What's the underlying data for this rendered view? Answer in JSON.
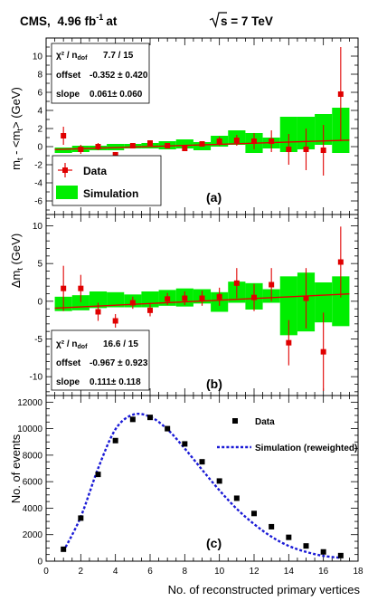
{
  "header": {
    "experiment": "CMS,",
    "lumi": "4.96 fb",
    "lumi_exp": "-1",
    "at": "at",
    "energy": "s = 7 TeV"
  },
  "chart_data": [
    {
      "type": "scatter",
      "panel_label": "(a)",
      "ylabel": "m",
      "ylabel_sub": "t",
      "ylabel_mid": " - <m",
      "ylabel_sub2": "t",
      "ylabel_end": "> (GeV)",
      "xlim": [
        0,
        18
      ],
      "ylim": [
        -7.5,
        12
      ],
      "yticks": [
        -6,
        -4,
        -2,
        0,
        2,
        4,
        6,
        8,
        10
      ],
      "grid": false,
      "legend_position": "bottom-left",
      "legend": [
        {
          "label": "Data",
          "kind": "marker",
          "color": "#e00000"
        },
        {
          "label": "Simulation",
          "kind": "band",
          "color": "#00ee00"
        }
      ],
      "fit_stats": {
        "chi2_label": "χ² / n",
        "chi2_sub": "dof",
        "chi2_value": "7.7 / 15",
        "offset_label": "offset",
        "offset_value": "-0.352 ± 0.420",
        "slope_label": "slope",
        "slope_value": "0.061± 0.060"
      },
      "fit_line": {
        "intercept": -0.352,
        "slope": 0.061,
        "color": "#e00000"
      },
      "data": [
        {
          "x": 1,
          "y": 1.2,
          "err": 1.0
        },
        {
          "x": 2,
          "y": -0.3,
          "err": 0.5
        },
        {
          "x": 3,
          "y": 0.0,
          "err": 0.4
        },
        {
          "x": 4,
          "y": -0.9,
          "err": 0.3
        },
        {
          "x": 5,
          "y": 0.1,
          "err": 0.3
        },
        {
          "x": 6,
          "y": 0.4,
          "err": 0.3
        },
        {
          "x": 7,
          "y": 0.1,
          "err": 0.3
        },
        {
          "x": 8,
          "y": -0.2,
          "err": 0.3
        },
        {
          "x": 9,
          "y": 0.3,
          "err": 0.3
        },
        {
          "x": 10,
          "y": 0.6,
          "err": 0.5
        },
        {
          "x": 11,
          "y": 0.7,
          "err": 0.6
        },
        {
          "x": 12,
          "y": 0.6,
          "err": 0.9
        },
        {
          "x": 13,
          "y": 0.6,
          "err": 1.2
        },
        {
          "x": 14,
          "y": -0.3,
          "err": 1.7
        },
        {
          "x": 15,
          "y": -0.3,
          "err": 2.3
        },
        {
          "x": 16,
          "y": -0.4,
          "err": 2.8
        },
        {
          "x": 17,
          "y": 5.8,
          "err": 5.2
        }
      ],
      "simulation_band": [
        {
          "x": 1,
          "lo": -0.7,
          "hi": -0.1
        },
        {
          "x": 2,
          "lo": -0.6,
          "hi": 0.1
        },
        {
          "x": 3,
          "lo": -0.4,
          "hi": 0.1
        },
        {
          "x": 4,
          "lo": -0.4,
          "hi": 0.3
        },
        {
          "x": 5,
          "lo": -0.2,
          "hi": 0.3
        },
        {
          "x": 6,
          "lo": -0.2,
          "hi": 0.4
        },
        {
          "x": 7,
          "lo": -0.3,
          "hi": 0.6
        },
        {
          "x": 8,
          "lo": -0.2,
          "hi": 0.8
        },
        {
          "x": 9,
          "lo": -0.4,
          "hi": 0.5
        },
        {
          "x": 10,
          "lo": 0.0,
          "hi": 1.2
        },
        {
          "x": 11,
          "lo": 0.2,
          "hi": 1.8
        },
        {
          "x": 12,
          "lo": -0.7,
          "hi": 1.5
        },
        {
          "x": 13,
          "lo": -0.2,
          "hi": 1.0
        },
        {
          "x": 14,
          "lo": -0.6,
          "hi": 3.3
        },
        {
          "x": 15,
          "lo": -0.3,
          "hi": 3.3
        },
        {
          "x": 16,
          "lo": 0.2,
          "hi": 3.6
        },
        {
          "x": 17,
          "lo": -0.7,
          "hi": 4.3
        }
      ]
    },
    {
      "type": "scatter",
      "panel_label": "(b)",
      "ylabel": "Δm",
      "ylabel_sub": "t",
      "ylabel_end": " (GeV)",
      "xlim": [
        0,
        18
      ],
      "ylim": [
        -12.5,
        11.5
      ],
      "yticks": [
        -10,
        -5,
        0,
        5,
        10
      ],
      "grid": false,
      "fit_stats": {
        "chi2_label": "χ² / n",
        "chi2_sub": "dof",
        "chi2_value": "16.6 / 15",
        "offset_label": "offset",
        "offset_value": "-0.967 ± 0.923",
        "slope_label": "slope",
        "slope_value": "0.111± 0.118"
      },
      "fit_line": {
        "intercept": -0.967,
        "slope": 0.111,
        "color": "#e00000"
      },
      "data": [
        {
          "x": 1,
          "y": 1.7,
          "err": 3.0
        },
        {
          "x": 2,
          "y": 1.7,
          "err": 1.8
        },
        {
          "x": 3,
          "y": -1.4,
          "err": 1.2
        },
        {
          "x": 4,
          "y": -2.6,
          "err": 0.9
        },
        {
          "x": 5,
          "y": -0.2,
          "err": 0.8
        },
        {
          "x": 6,
          "y": -1.2,
          "err": 0.8
        },
        {
          "x": 7,
          "y": 0.3,
          "err": 0.8
        },
        {
          "x": 8,
          "y": 0.4,
          "err": 0.9
        },
        {
          "x": 9,
          "y": 0.4,
          "err": 1.0
        },
        {
          "x": 10,
          "y": 0.6,
          "err": 1.2
        },
        {
          "x": 11,
          "y": 2.4,
          "err": 2.0
        },
        {
          "x": 12,
          "y": 0.5,
          "err": 1.8
        },
        {
          "x": 13,
          "y": 2.2,
          "err": 2.2
        },
        {
          "x": 14,
          "y": -5.5,
          "err": 3.0
        },
        {
          "x": 15,
          "y": 0.4,
          "err": 4.0
        },
        {
          "x": 16,
          "y": -6.7,
          "err": 5.2
        },
        {
          "x": 17,
          "y": 5.2,
          "err": 4.7
        }
      ],
      "simulation_band": [
        {
          "x": 1,
          "lo": -1.3,
          "hi": 0.6
        },
        {
          "x": 2,
          "lo": -1.2,
          "hi": 0.8
        },
        {
          "x": 3,
          "lo": -0.9,
          "hi": 1.3
        },
        {
          "x": 4,
          "lo": -0.8,
          "hi": 1.2
        },
        {
          "x": 5,
          "lo": -0.8,
          "hi": 0.9
        },
        {
          "x": 6,
          "lo": -0.8,
          "hi": 1.3
        },
        {
          "x": 7,
          "lo": -0.6,
          "hi": 1.5
        },
        {
          "x": 8,
          "lo": -0.7,
          "hi": 1.7
        },
        {
          "x": 9,
          "lo": -0.3,
          "hi": 1.6
        },
        {
          "x": 10,
          "lo": -1.4,
          "hi": 1.2
        },
        {
          "x": 11,
          "lo": -0.2,
          "hi": 2.6
        },
        {
          "x": 12,
          "lo": -1.1,
          "hi": 2.4
        },
        {
          "x": 13,
          "lo": -0.2,
          "hi": 1.6
        },
        {
          "x": 14,
          "lo": -4.5,
          "hi": 3.3
        },
        {
          "x": 15,
          "lo": -4.0,
          "hi": 3.8
        },
        {
          "x": 16,
          "lo": -2.8,
          "hi": 2.5
        },
        {
          "x": 17,
          "lo": -3.3,
          "hi": 3.3
        }
      ]
    },
    {
      "type": "scatter",
      "panel_label": "(c)",
      "ylabel": "No. of events",
      "xlabel": "No. of reconstructed primary vertices",
      "xlim": [
        0,
        18
      ],
      "ylim": [
        0,
        12500
      ],
      "xticks": [
        0,
        2,
        4,
        6,
        8,
        10,
        12,
        14,
        16,
        18
      ],
      "yticks": [
        0,
        2000,
        4000,
        6000,
        8000,
        10000,
        12000
      ],
      "grid": false,
      "legend_position": "top-right",
      "legend": [
        {
          "label": "Data",
          "kind": "marker",
          "color": "#000000"
        },
        {
          "label": "Simulation (reweighted)",
          "kind": "dashed-line",
          "color": "#1a1ad6"
        }
      ],
      "series": [
        {
          "name": "Data",
          "x": [
            1,
            2,
            3,
            4,
            5,
            6,
            7,
            8,
            9,
            10,
            11,
            12,
            13,
            14,
            15,
            16,
            17
          ],
          "values": [
            900,
            3250,
            6550,
            9100,
            10700,
            10850,
            10000,
            8850,
            7500,
            6050,
            4750,
            3600,
            2600,
            1800,
            1150,
            700,
            420
          ]
        },
        {
          "name": "Simulation (reweighted)",
          "x": [
            1,
            2,
            3,
            4,
            5,
            6,
            7,
            8,
            9,
            10,
            11,
            12,
            13,
            14,
            15,
            16,
            17
          ],
          "values": [
            750,
            3350,
            7000,
            9950,
            11050,
            10900,
            9950,
            8500,
            6900,
            5350,
            3950,
            2800,
            1850,
            1150,
            700,
            400,
            250
          ]
        }
      ]
    }
  ]
}
